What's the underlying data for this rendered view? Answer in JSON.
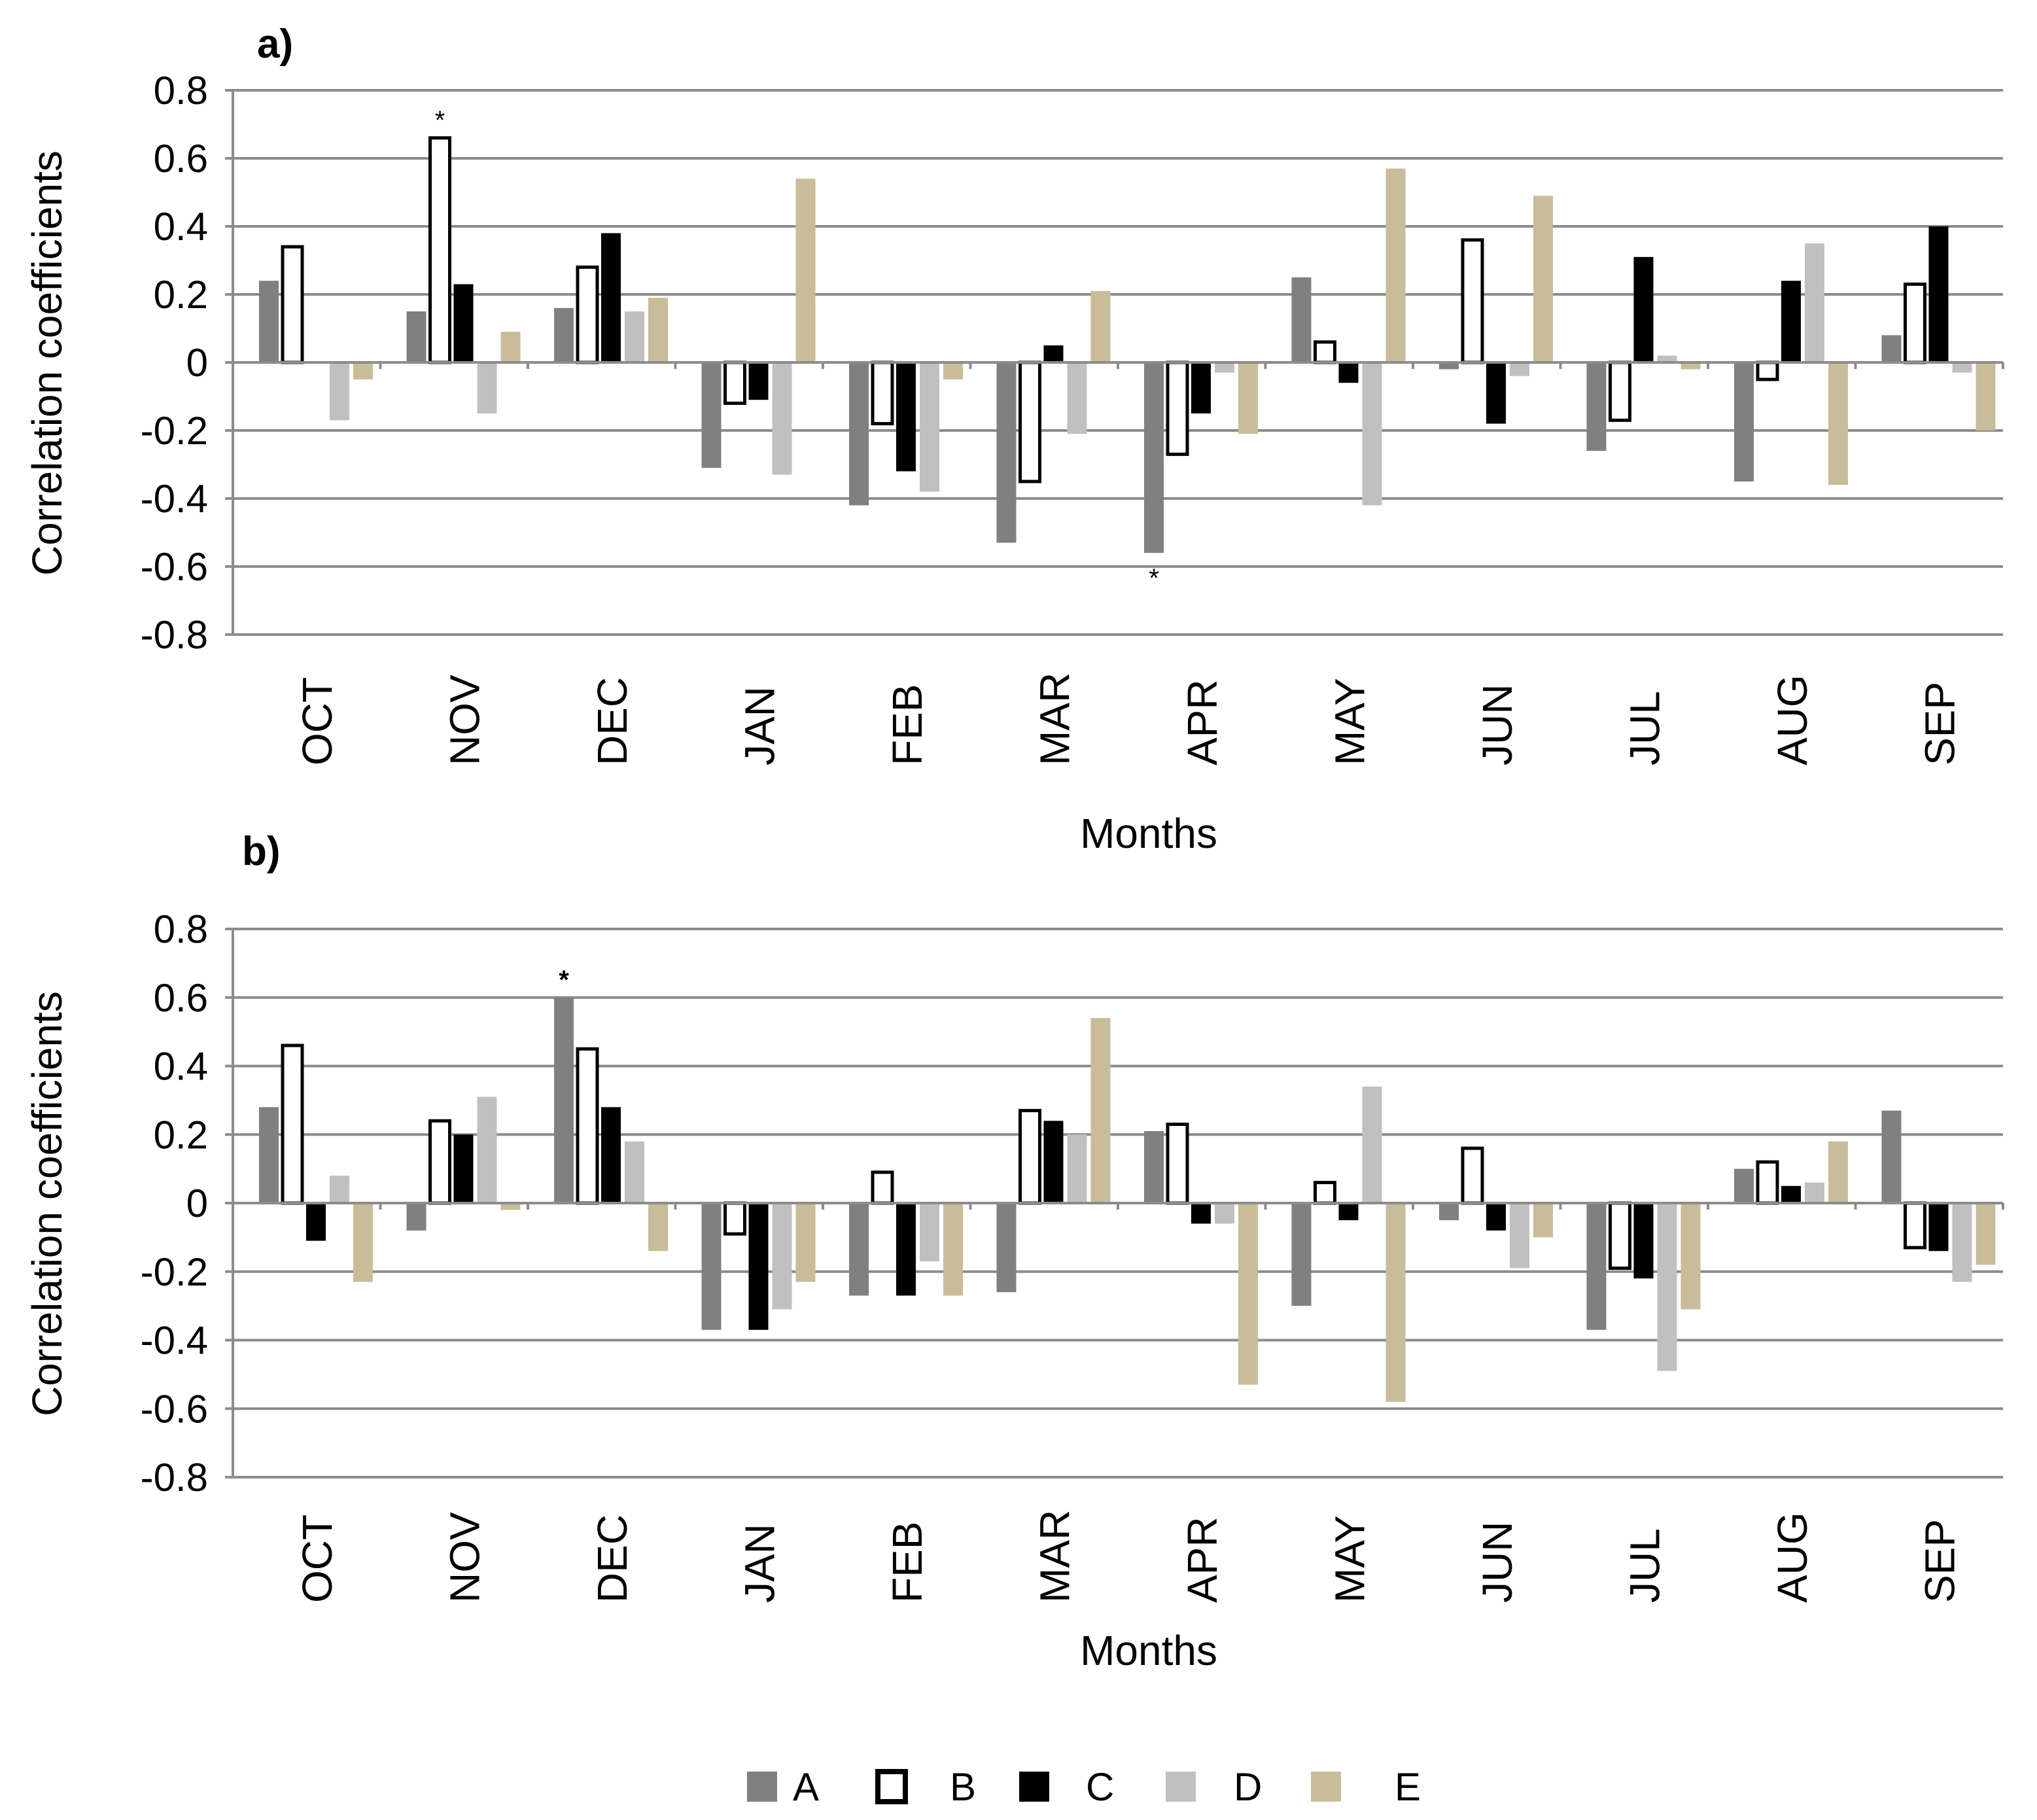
{
  "chart_data": [
    {
      "panel_label": "a)",
      "type": "bar",
      "ylabel": "Correlation coefficients",
      "xlabel": "Months",
      "ylim": [
        -0.8,
        0.8
      ],
      "yticks": [
        "0.8",
        "0.6",
        "0.4",
        "0.2",
        "0",
        "-0.2",
        "-0.4",
        "-0.6",
        "-0.8"
      ],
      "grid": true,
      "categories": [
        "OCT",
        "NOV",
        "DEC",
        "JAN",
        "FEB",
        "MAR",
        "APR",
        "MAY",
        "JUN",
        "JUL",
        "AUG",
        "SEP"
      ],
      "series": [
        {
          "name": "A",
          "values": [
            0.24,
            0.15,
            0.16,
            -0.31,
            -0.42,
            -0.53,
            -0.56,
            0.25,
            -0.02,
            -0.26,
            -0.35,
            0.08
          ]
        },
        {
          "name": "B",
          "values": [
            0.34,
            0.66,
            0.28,
            -0.12,
            -0.18,
            -0.35,
            -0.27,
            0.06,
            0.36,
            -0.17,
            -0.05,
            0.23
          ]
        },
        {
          "name": "C",
          "values": [
            0.0,
            0.23,
            0.38,
            -0.11,
            -0.32,
            0.05,
            -0.15,
            -0.06,
            -0.18,
            0.31,
            0.24,
            0.4
          ]
        },
        {
          "name": "D",
          "values": [
            -0.17,
            -0.15,
            0.15,
            -0.33,
            -0.38,
            -0.21,
            -0.03,
            -0.42,
            -0.04,
            0.02,
            0.35,
            -0.03
          ]
        },
        {
          "name": "E",
          "values": [
            -0.05,
            0.09,
            0.19,
            0.54,
            -0.05,
            0.21,
            -0.21,
            0.57,
            0.49,
            -0.02,
            -0.36,
            -0.2
          ]
        }
      ],
      "annotations": [
        {
          "text": "*",
          "category": "NOV",
          "series": "B"
        },
        {
          "text": "*",
          "category": "APR",
          "series": "A"
        }
      ]
    },
    {
      "panel_label": "b)",
      "type": "bar",
      "ylabel": "Correlation coefficients",
      "xlabel": "Months",
      "ylim": [
        -0.8,
        0.8
      ],
      "yticks": [
        "0.8",
        "0.6",
        "0.4",
        "0.2",
        "0",
        "-0.2",
        "-0.4",
        "-0.6",
        "-0.8"
      ],
      "grid": true,
      "categories": [
        "OCT",
        "NOV",
        "DEC",
        "JAN",
        "FEB",
        "MAR",
        "APR",
        "MAY",
        "JUN",
        "JUL",
        "AUG",
        "SEP"
      ],
      "series": [
        {
          "name": "A",
          "values": [
            0.28,
            -0.08,
            0.6,
            -0.37,
            -0.27,
            -0.26,
            0.21,
            -0.3,
            -0.05,
            -0.37,
            0.1,
            0.27
          ]
        },
        {
          "name": "B",
          "values": [
            0.46,
            0.24,
            0.45,
            -0.09,
            0.09,
            0.27,
            0.23,
            0.06,
            0.16,
            -0.19,
            0.12,
            -0.13
          ]
        },
        {
          "name": "C",
          "values": [
            -0.11,
            0.2,
            0.28,
            -0.37,
            -0.27,
            0.24,
            -0.06,
            -0.05,
            -0.08,
            -0.22,
            0.05,
            -0.14
          ]
        },
        {
          "name": "D",
          "values": [
            0.08,
            0.31,
            0.18,
            -0.31,
            -0.17,
            0.2,
            -0.06,
            0.34,
            -0.19,
            -0.49,
            0.06,
            -0.23
          ]
        },
        {
          "name": "E",
          "values": [
            -0.23,
            -0.02,
            -0.14,
            -0.23,
            -0.27,
            0.54,
            -0.53,
            -0.58,
            -0.1,
            -0.31,
            0.18,
            -0.18
          ]
        }
      ],
      "annotations": [
        {
          "text": "*",
          "category": "DEC",
          "series": "A"
        }
      ]
    }
  ],
  "legend": {
    "position": "bottom-center",
    "entries": [
      "A",
      "B",
      "C",
      "D",
      "E"
    ]
  },
  "colors": {
    "A": "#808080",
    "B": "#ffffff",
    "C": "#000000",
    "D": "#c0c0c0",
    "E": "#c8bd98",
    "grid": "#8c8c8c",
    "axis": "#8c8c8c",
    "outline": "#000000"
  }
}
